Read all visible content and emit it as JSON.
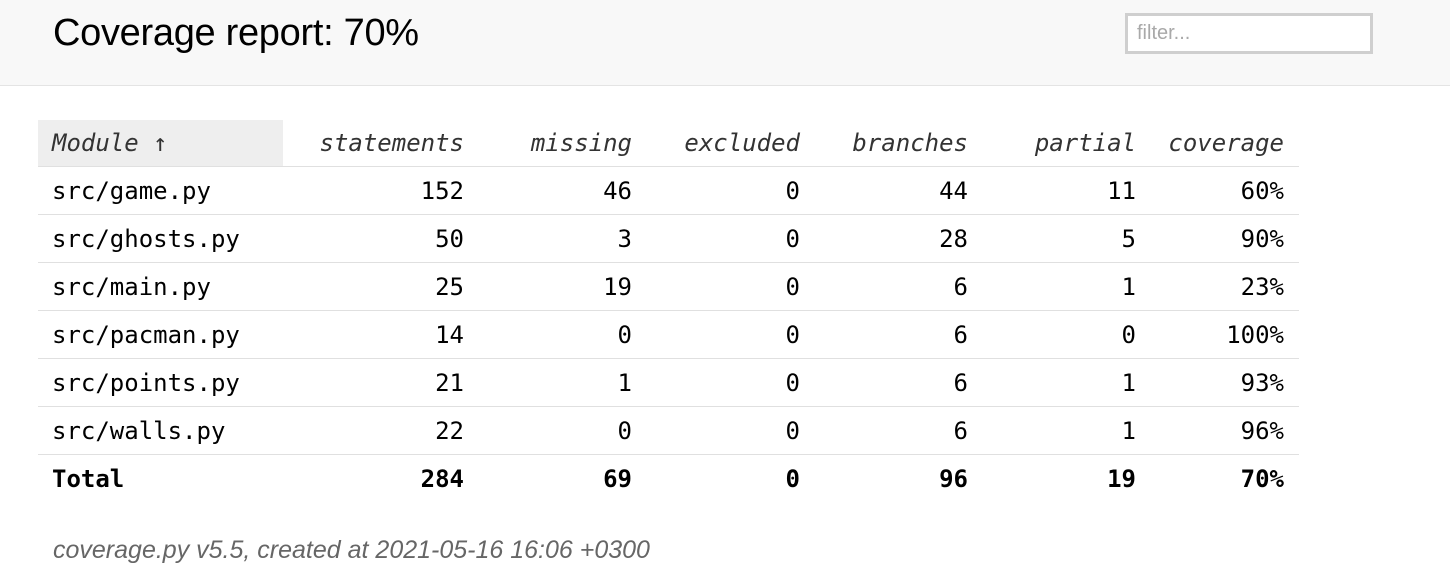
{
  "header": {
    "title": "Coverage report: 70%",
    "filter_placeholder": "filter..."
  },
  "table": {
    "columns": [
      {
        "key": "name",
        "label": "Module ↑"
      },
      {
        "key": "statements",
        "label": "statements"
      },
      {
        "key": "missing",
        "label": "missing"
      },
      {
        "key": "excluded",
        "label": "excluded"
      },
      {
        "key": "branches",
        "label": "branches"
      },
      {
        "key": "partial",
        "label": "partial"
      },
      {
        "key": "coverage",
        "label": "coverage"
      }
    ],
    "rows": [
      {
        "name": "src/game.py",
        "statements": "152",
        "missing": "46",
        "excluded": "0",
        "branches": "44",
        "partial": "11",
        "coverage": "60%"
      },
      {
        "name": "src/ghosts.py",
        "statements": "50",
        "missing": "3",
        "excluded": "0",
        "branches": "28",
        "partial": "5",
        "coverage": "90%"
      },
      {
        "name": "src/main.py",
        "statements": "25",
        "missing": "19",
        "excluded": "0",
        "branches": "6",
        "partial": "1",
        "coverage": "23%"
      },
      {
        "name": "src/pacman.py",
        "statements": "14",
        "missing": "0",
        "excluded": "0",
        "branches": "6",
        "partial": "0",
        "coverage": "100%"
      },
      {
        "name": "src/points.py",
        "statements": "21",
        "missing": "1",
        "excluded": "0",
        "branches": "6",
        "partial": "1",
        "coverage": "93%"
      },
      {
        "name": "src/walls.py",
        "statements": "22",
        "missing": "0",
        "excluded": "0",
        "branches": "6",
        "partial": "1",
        "coverage": "96%"
      }
    ],
    "total": {
      "name": "Total",
      "statements": "284",
      "missing": "69",
      "excluded": "0",
      "branches": "96",
      "partial": "19",
      "coverage": "70%"
    }
  },
  "footer": {
    "text": "coverage.py v5.5, created at 2021-05-16 16:06 +0300"
  }
}
